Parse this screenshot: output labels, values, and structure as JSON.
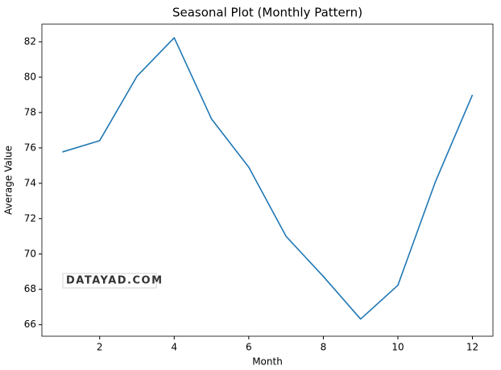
{
  "chart_data": {
    "type": "line",
    "title": "Seasonal Plot (Monthly Pattern)",
    "x_label": "Month",
    "y_label": "Average Value",
    "watermark": "DATAYAD.COM",
    "x": [
      1,
      2,
      3,
      4,
      5,
      6,
      7,
      8,
      9,
      10,
      11,
      12
    ],
    "series": [
      {
        "color": "#1f77b4",
        "values": [
          75.77,
          76.41,
          80.05,
          82.23,
          77.64,
          74.91,
          71.0,
          68.73,
          66.32,
          68.23,
          74.05,
          79.0
        ]
      }
    ],
    "xlim": [
      0.45,
      12.55
    ],
    "xticks": [
      2,
      4,
      6,
      8,
      10,
      12
    ],
    "ylim": [
      65.35,
      83.0
    ],
    "yticks": [
      66,
      68,
      70,
      72,
      74,
      76,
      78,
      80,
      82
    ],
    "grid": false
  }
}
